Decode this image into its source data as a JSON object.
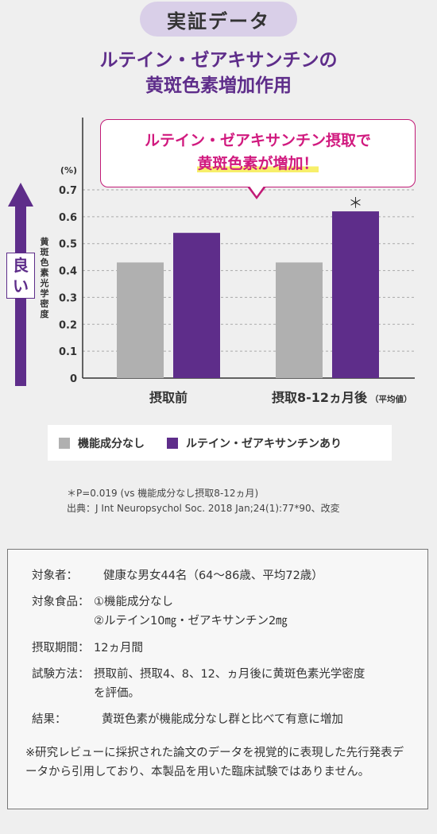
{
  "badge": "実証データ",
  "title": [
    "ルテイン・ゼアキサンチンの",
    "黄斑色素増加作用"
  ],
  "callout": {
    "line1": "ルテイン・ゼアキサンチン摂取で",
    "line2": "黄斑色素が増加！"
  },
  "good_label": [
    "良",
    "い"
  ],
  "ylabel": "黄斑色素光学密度",
  "colors": {
    "control": "#b0b0b0",
    "treatment": "#5e2d8a",
    "accent": "#d11a7f"
  },
  "chart_data": {
    "type": "bar",
    "categories": [
      "摂取前",
      "摂取8-12ヵ月後"
    ],
    "category_note": "（平均値）",
    "series": [
      {
        "name": "機能成分なし",
        "values": [
          0.43,
          0.43
        ]
      },
      {
        "name": "ルテイン・ゼアキサンチンあり",
        "values": [
          0.54,
          0.62
        ]
      }
    ],
    "unit_label": "(%)",
    "yticks": [
      "0",
      "0.1",
      "0.2",
      "0.3",
      "0.4",
      "0.5",
      "0.6",
      "0.7"
    ],
    "ylim": [
      0,
      0.7
    ],
    "annotation": "＊",
    "grid": true
  },
  "legend": {
    "control": "機能成分なし",
    "treatment": "ルテイン・ゼアキサンチンあり"
  },
  "notes": [
    "＊P=0.019 (vs 機能成分なし摂取8-12ヵ月)",
    "出典：J Int Neuropsychol Soc. 2018 Jan;24(1):77*90、改変"
  ],
  "info": {
    "subject_key": "対象者：",
    "subject_val": "健康な男女44名（64〜86歳、平均72歳）",
    "food_key": "対象食品：",
    "food_val1": "①機能成分なし",
    "food_val2": "②ルテイン10㎎・ゼアキサンチン2㎎",
    "period_key": "摂取期間：",
    "period_val": "12ヵ月間",
    "method_key": "試験方法：",
    "method_val1": "摂取前、摂取4、8、12、ヵ月後に黄斑色素光学密度",
    "method_val2": "を評価。",
    "result_key": "結果：",
    "result_val": "黄斑色素が機能成分なし群と比べて有意に増加",
    "footnote": "※研究レビューに採択された論文のデータを視覚的に表現した先行発表データから引用しており、本製品を用いた臨床試験ではありません。"
  }
}
